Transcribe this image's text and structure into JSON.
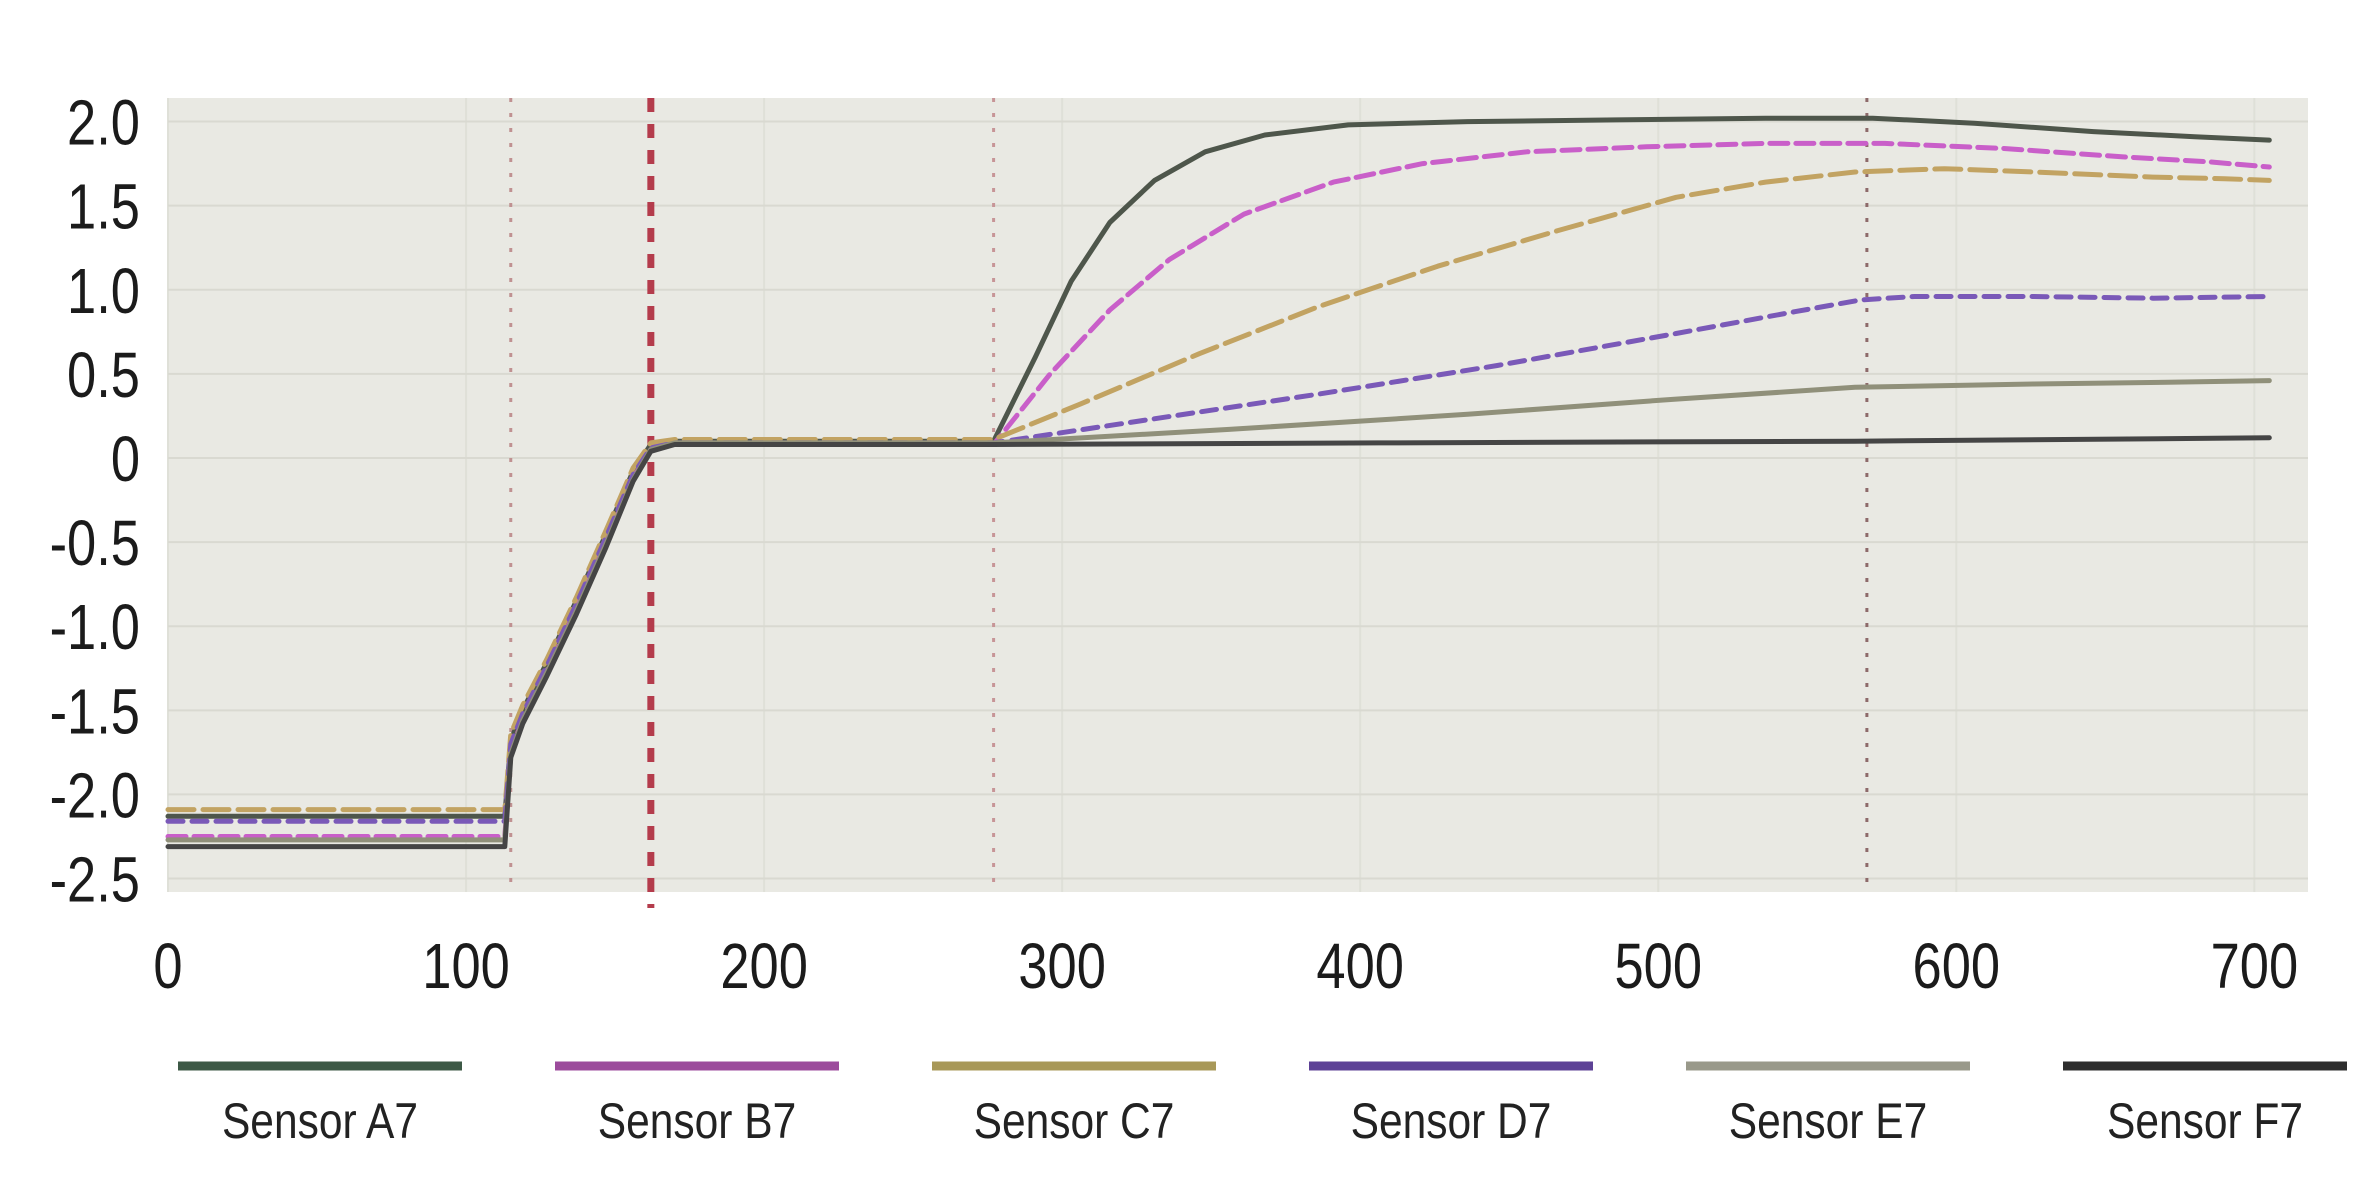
{
  "chart_data": {
    "type": "line",
    "x_axis": {
      "tick_values": [
        0,
        100,
        200,
        300,
        400,
        500,
        600,
        700
      ],
      "tick_labels": [
        "0",
        "100",
        "200",
        "300",
        "400",
        "500",
        "600",
        "700"
      ],
      "range": [
        0,
        718
      ],
      "gridlines": true
    },
    "y_axis": {
      "tick_values": [
        2.0,
        1.5,
        1.0,
        0.5,
        0,
        -0.5,
        -1.0,
        -1.5,
        -2.0,
        -2.5
      ],
      "tick_labels": [
        "2.0",
        "1.5",
        "1.0",
        "0.5",
        "0",
        "-0.5",
        "-1.0",
        "-1.5",
        "-2.0",
        "-2.5"
      ],
      "range": [
        -2.58,
        2.14
      ],
      "gridlines": true
    },
    "styles": {
      "page_background": "#ffffff",
      "plot_background": "#e9e9e3",
      "h_grid_color": "#d9d9d1",
      "v_grid_color": "#dfe0d8",
      "tick_text_color": "#1b1b1b",
      "legend_text_color": "#222222"
    },
    "reference_lines": [
      {
        "x": 115,
        "color": "#c09191",
        "style": "dotted",
        "width": 3
      },
      {
        "x": 162,
        "color": "#b43c4c",
        "style": "dashed",
        "width": 7
      },
      {
        "x": 277,
        "color": "#c79597",
        "style": "dotted",
        "width": 3
      },
      {
        "x": 570,
        "color": "#8d6a6a",
        "style": "dotted",
        "width": 3
      }
    ],
    "legend_position": "bottom",
    "series": [
      {
        "name": "Sensor A7",
        "line_color": "#4e564b",
        "legend_color": "#3d5946",
        "dash": "",
        "points": [
          [
            0,
            -2.13
          ],
          [
            113,
            -2.13
          ],
          [
            115,
            -1.68
          ],
          [
            119,
            -1.5
          ],
          [
            127,
            -1.22
          ],
          [
            137,
            -0.85
          ],
          [
            147,
            -0.45
          ],
          [
            156,
            -0.08
          ],
          [
            162,
            0.08
          ],
          [
            170,
            0.1
          ],
          [
            277,
            0.1
          ],
          [
            291,
            0.6
          ],
          [
            303,
            1.05
          ],
          [
            316,
            1.4
          ],
          [
            331,
            1.65
          ],
          [
            348,
            1.82
          ],
          [
            368,
            1.92
          ],
          [
            396,
            1.98
          ],
          [
            436,
            2.0
          ],
          [
            486,
            2.01
          ],
          [
            536,
            2.02
          ],
          [
            572,
            2.02
          ],
          [
            606,
            1.99
          ],
          [
            646,
            1.94
          ],
          [
            680,
            1.91
          ],
          [
            705,
            1.89
          ]
        ]
      },
      {
        "name": "Sensor B7",
        "line_color": "#c95fc9",
        "legend_color": "#9c4b9c",
        "dash": "18 8",
        "points": [
          [
            0,
            -2.25
          ],
          [
            113,
            -2.25
          ],
          [
            115,
            -1.75
          ],
          [
            119,
            -1.55
          ],
          [
            127,
            -1.27
          ],
          [
            137,
            -0.9
          ],
          [
            147,
            -0.5
          ],
          [
            156,
            -0.12
          ],
          [
            162,
            0.05
          ],
          [
            170,
            0.08
          ],
          [
            277,
            0.08
          ],
          [
            296,
            0.5
          ],
          [
            316,
            0.88
          ],
          [
            336,
            1.18
          ],
          [
            361,
            1.45
          ],
          [
            391,
            1.64
          ],
          [
            421,
            1.75
          ],
          [
            456,
            1.82
          ],
          [
            496,
            1.85
          ],
          [
            536,
            1.87
          ],
          [
            576,
            1.87
          ],
          [
            616,
            1.84
          ],
          [
            656,
            1.79
          ],
          [
            685,
            1.76
          ],
          [
            705,
            1.73
          ]
        ]
      },
      {
        "name": "Sensor C7",
        "line_color": "#c2a362",
        "legend_color": "#a89858",
        "dash": "26 9",
        "points": [
          [
            0,
            -2.09
          ],
          [
            113,
            -2.09
          ],
          [
            115,
            -1.64
          ],
          [
            119,
            -1.47
          ],
          [
            127,
            -1.2
          ],
          [
            137,
            -0.83
          ],
          [
            147,
            -0.43
          ],
          [
            156,
            -0.06
          ],
          [
            162,
            0.09
          ],
          [
            170,
            0.11
          ],
          [
            277,
            0.11
          ],
          [
            306,
            0.32
          ],
          [
            346,
            0.62
          ],
          [
            386,
            0.9
          ],
          [
            426,
            1.14
          ],
          [
            466,
            1.35
          ],
          [
            506,
            1.55
          ],
          [
            536,
            1.64
          ],
          [
            566,
            1.7
          ],
          [
            596,
            1.72
          ],
          [
            626,
            1.7
          ],
          [
            666,
            1.67
          ],
          [
            690,
            1.66
          ],
          [
            705,
            1.65
          ]
        ]
      },
      {
        "name": "Sensor D7",
        "line_color": "#7a59b8",
        "legend_color": "#5d4196",
        "dash": "15 9",
        "points": [
          [
            0,
            -2.16
          ],
          [
            113,
            -2.16
          ],
          [
            115,
            -1.7
          ],
          [
            119,
            -1.52
          ],
          [
            127,
            -1.24
          ],
          [
            137,
            -0.87
          ],
          [
            147,
            -0.47
          ],
          [
            156,
            -0.1
          ],
          [
            162,
            0.06
          ],
          [
            170,
            0.09
          ],
          [
            277,
            0.09
          ],
          [
            326,
            0.22
          ],
          [
            386,
            0.38
          ],
          [
            446,
            0.55
          ],
          [
            506,
            0.74
          ],
          [
            546,
            0.87
          ],
          [
            568,
            0.94
          ],
          [
            586,
            0.96
          ],
          [
            626,
            0.96
          ],
          [
            666,
            0.95
          ],
          [
            705,
            0.96
          ]
        ]
      },
      {
        "name": "Sensor E7",
        "line_color": "#90907a",
        "legend_color": "#99998a",
        "dash": "",
        "points": [
          [
            0,
            -2.27
          ],
          [
            113,
            -2.27
          ],
          [
            115,
            -1.76
          ],
          [
            119,
            -1.56
          ],
          [
            127,
            -1.28
          ],
          [
            137,
            -0.91
          ],
          [
            147,
            -0.51
          ],
          [
            156,
            -0.13
          ],
          [
            162,
            0.05
          ],
          [
            170,
            0.09
          ],
          [
            277,
            0.09
          ],
          [
            356,
            0.17
          ],
          [
            436,
            0.26
          ],
          [
            506,
            0.35
          ],
          [
            566,
            0.42
          ],
          [
            626,
            0.44
          ],
          [
            671,
            0.45
          ],
          [
            705,
            0.46
          ]
        ]
      },
      {
        "name": "Sensor F7",
        "line_color": "#454545",
        "legend_color": "#2d2d2d",
        "dash": "",
        "points": [
          [
            0,
            -2.31
          ],
          [
            113,
            -2.31
          ],
          [
            115,
            -1.78
          ],
          [
            119,
            -1.58
          ],
          [
            127,
            -1.3
          ],
          [
            137,
            -0.93
          ],
          [
            147,
            -0.53
          ],
          [
            156,
            -0.14
          ],
          [
            162,
            0.04
          ],
          [
            170,
            0.08
          ],
          [
            277,
            0.08
          ],
          [
            406,
            0.09
          ],
          [
            566,
            0.1
          ],
          [
            705,
            0.12
          ]
        ]
      }
    ]
  }
}
